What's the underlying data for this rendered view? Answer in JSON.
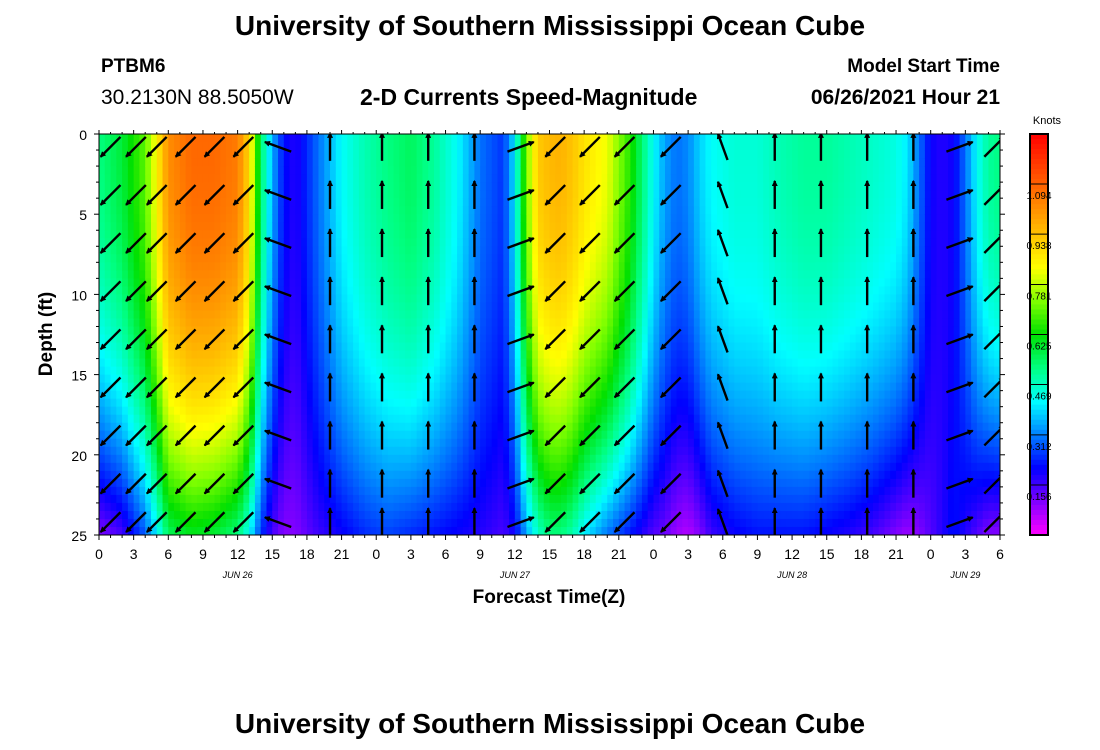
{
  "header": {
    "title": "University of Southern Mississippi Ocean Cube",
    "footer_title": "University of Southern Mississippi Ocean Cube",
    "station": "PTBM6",
    "coords": "30.2130N  88.5050W",
    "chart_title": "2-D Currents Speed-Magnitude",
    "model_label": "Model Start Time",
    "model_date": "06/26/2021 Hour 21"
  },
  "chart_data": {
    "type": "heatmap",
    "title": "2-D Currents Speed-Magnitude",
    "xlabel": "Forecast Time(Z)",
    "ylabel": "Depth (ft)",
    "x_range": [
      0,
      78
    ],
    "y_range": [
      0,
      25
    ],
    "x_tick_labels": [
      "0",
      "3",
      "6",
      "9",
      "12",
      "15",
      "18",
      "21",
      "0",
      "3",
      "6",
      "9",
      "12",
      "15",
      "18",
      "21",
      "0",
      "3",
      "6",
      "9",
      "12",
      "15",
      "18",
      "21",
      "0",
      "3",
      "6"
    ],
    "y_tick_labels": [
      "0",
      "5",
      "10",
      "15",
      "20",
      "25"
    ],
    "date_labels": [
      {
        "label": "JUN 26",
        "hour": 12
      },
      {
        "label": "JUN 27",
        "hour": 36
      },
      {
        "label": "JUN 28",
        "hour": 60
      },
      {
        "label": "JUN 29",
        "hour": 75
      }
    ],
    "colorbar": {
      "title": "Knots",
      "labels": [
        "1.094",
        "0.938",
        "0.781",
        "0.625",
        "0.469",
        "0.312",
        "0.156"
      ],
      "levels": [
        1.094,
        0.938,
        0.781,
        0.625,
        0.469,
        0.312,
        0.156
      ],
      "min": 0.0,
      "max": 1.25,
      "colors": [
        "#ff00ff",
        "#7f00ff",
        "#0000ff",
        "#0080ff",
        "#00ffff",
        "#00ff80",
        "#00e000",
        "#80ff00",
        "#ffff00",
        "#ffc000",
        "#ff8000",
        "#ff4000",
        "#ff0000"
      ]
    },
    "speed_profile": {
      "hours": [
        0,
        2,
        4,
        5,
        6,
        8,
        10,
        12,
        13,
        14,
        15,
        16,
        17,
        19,
        21,
        23,
        25,
        27,
        29,
        31,
        33,
        35,
        36,
        37,
        38,
        39,
        40,
        41,
        42,
        44,
        46,
        48,
        49,
        50,
        51,
        52,
        53,
        55,
        57,
        59,
        61,
        63,
        65,
        67,
        69,
        70,
        71,
        72,
        73,
        74,
        75,
        76,
        77,
        78
      ],
      "surface": [
        0.52,
        0.58,
        0.7,
        0.85,
        1.02,
        1.08,
        1.08,
        1.05,
        0.9,
        0.55,
        0.35,
        0.22,
        0.18,
        0.3,
        0.42,
        0.48,
        0.52,
        0.55,
        0.5,
        0.42,
        0.3,
        0.25,
        0.4,
        0.72,
        0.92,
        0.95,
        0.96,
        0.93,
        0.88,
        0.82,
        0.65,
        0.42,
        0.34,
        0.3,
        0.32,
        0.38,
        0.42,
        0.45,
        0.45,
        0.48,
        0.5,
        0.5,
        0.48,
        0.46,
        0.44,
        0.4,
        0.3,
        0.2,
        0.18,
        0.2,
        0.3,
        0.42,
        0.5,
        0.52
      ],
      "bottom": [
        0.1,
        0.15,
        0.28,
        0.4,
        0.55,
        0.6,
        0.58,
        0.52,
        0.42,
        0.25,
        0.15,
        0.1,
        0.1,
        0.16,
        0.2,
        0.24,
        0.26,
        0.24,
        0.22,
        0.2,
        0.18,
        0.15,
        0.2,
        0.34,
        0.46,
        0.52,
        0.52,
        0.48,
        0.4,
        0.3,
        0.22,
        0.14,
        0.12,
        0.08,
        0.06,
        0.1,
        0.16,
        0.2,
        0.22,
        0.22,
        0.22,
        0.2,
        0.18,
        0.15,
        0.1,
        0.08,
        0.1,
        0.14,
        0.18,
        0.22,
        0.18,
        0.14,
        0.1,
        0.1
      ]
    },
    "vector_hours": [
      1,
      3.2,
      5,
      7.5,
      10,
      12.5,
      15.5,
      20,
      24.5,
      28.5,
      32.5,
      36.5,
      39.5,
      42.5,
      45.5,
      49.5,
      54,
      58.5,
      62.5,
      66.5,
      70.5,
      74.5,
      77.5
    ],
    "vector_depths": [
      0.8,
      3.8,
      6.8,
      9.8,
      12.8,
      15.8,
      18.8,
      21.8,
      24.2
    ],
    "vector_direction_deg": [
      225,
      225,
      225,
      225,
      225,
      225,
      290,
      0,
      0,
      0,
      0,
      70,
      225,
      225,
      225,
      225,
      340,
      0,
      0,
      0,
      0,
      70,
      45
    ]
  }
}
